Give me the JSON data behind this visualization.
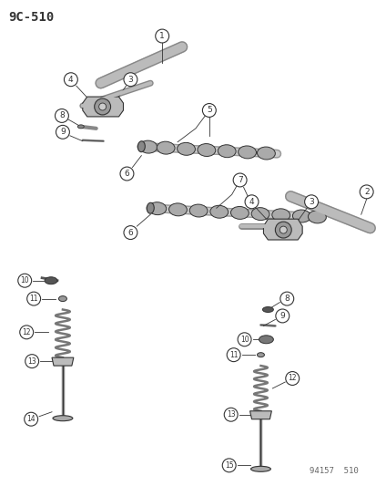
{
  "title": "9C-510",
  "watermark": "94157  510",
  "bg_color": "#ffffff",
  "fig_width": 4.14,
  "fig_height": 5.33,
  "dpi": 100,
  "line_color": "#333333",
  "part_color": "#bbbbbb",
  "dark_color": "#888888"
}
